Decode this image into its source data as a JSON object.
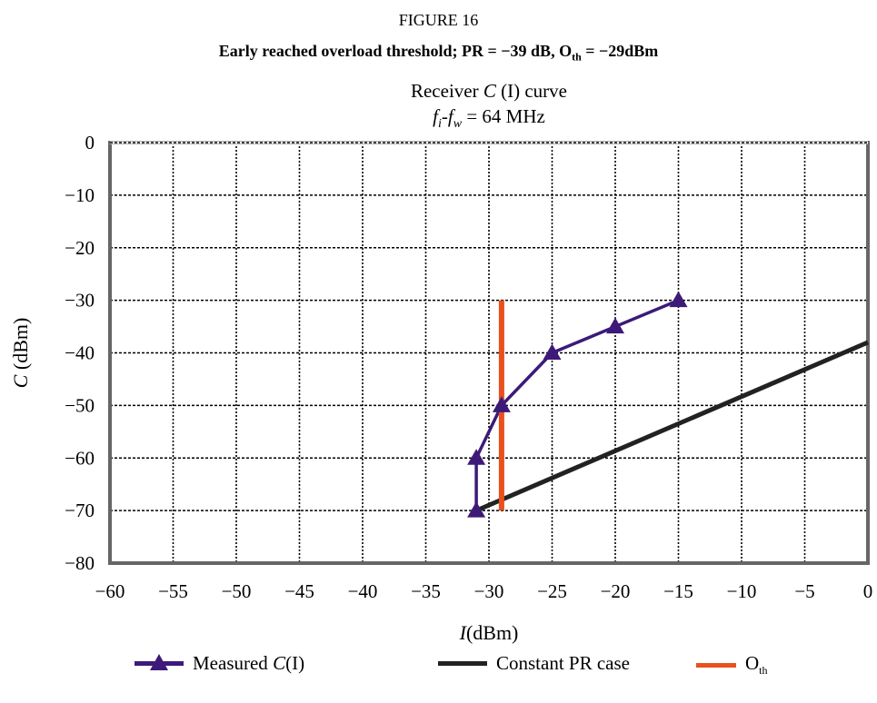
{
  "figure": {
    "number": "FIGURE 16",
    "title_main": "Early reached overload threshold; PR = −39 dB, O",
    "title_sub": "th",
    "title_tail": " = −29dBm"
  },
  "chart_data": {
    "type": "line",
    "title_line1": "Receiver C (I) curve",
    "title_line2": "f_i-f_w = 64 MHz",
    "xlabel": "I(dBm)",
    "ylabel": "C (dBm)",
    "xlim": [
      -60,
      0
    ],
    "ylim": [
      -80,
      0
    ],
    "xticks": [
      -60,
      -55,
      -50,
      -45,
      -40,
      -35,
      -30,
      -25,
      -20,
      -15,
      -10,
      -5,
      0
    ],
    "yticks": [
      0,
      -10,
      -20,
      -30,
      -40,
      -50,
      -60,
      -70,
      -80
    ],
    "xtick_labels": [
      "−60",
      "−55",
      "−50",
      "−45",
      "−40",
      "−35",
      "−30",
      "−25",
      "−20",
      "−15",
      "−10",
      "−5",
      "0"
    ],
    "ytick_labels": [
      "0",
      "−10",
      "−20",
      "−30",
      "−40",
      "−50",
      "−60",
      "−70",
      "−80"
    ],
    "grid": true,
    "legend_position": "bottom",
    "series": [
      {
        "name": "Measured C(I)",
        "color": "#3d1a78",
        "marker": "triangle",
        "points": [
          [
            -31,
            -70
          ],
          [
            -31,
            -60
          ],
          [
            -29,
            -50
          ],
          [
            -25,
            -40
          ],
          [
            -20,
            -35
          ],
          [
            -15,
            -30
          ]
        ]
      },
      {
        "name": "Constant PR case",
        "color": "#222222",
        "marker": "none",
        "points": [
          [
            -31,
            -70
          ],
          [
            0,
            -38
          ]
        ]
      },
      {
        "name": "Oth",
        "color": "#e8501e",
        "marker": "none",
        "points": [
          [
            -29,
            -30
          ],
          [
            -29,
            -70
          ]
        ]
      }
    ]
  },
  "legend": {
    "measured_prefix": "Measured ",
    "measured_italic": "C",
    "measured_suffix": "(I)",
    "constant": "Constant PR case",
    "oth_main": "O",
    "oth_sub": "th"
  },
  "colors": {
    "measured": "#3d1a78",
    "constant": "#222222",
    "threshold": "#e8501e",
    "plot_border": "#666666"
  }
}
